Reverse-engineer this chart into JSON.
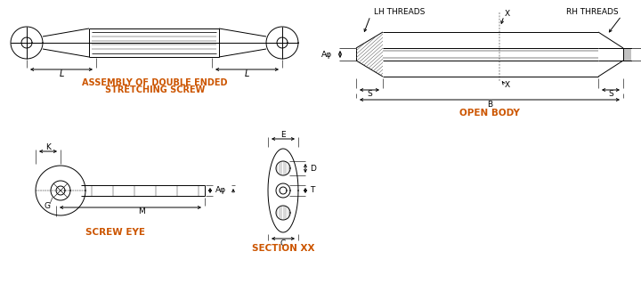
{
  "bg_color": "#ffffff",
  "lc": "#000000",
  "orange": "#cc5500",
  "lw": 0.7,
  "title1_line1": "ASSEMBLY OF DOUBLE ENDED",
  "title1_line2": "STRETCHING SCREW",
  "title2": "OPEN BODY",
  "title3": "SCREW EYE",
  "title4": "SECTION XX"
}
